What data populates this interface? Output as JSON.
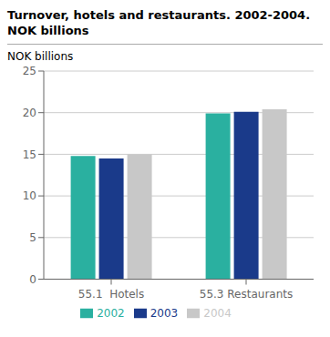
{
  "chart_data": {
    "type": "bar",
    "title": "Turnover, hotels and restaurants. 2002-2004.",
    "subtitle": "NOK billions",
    "ylabel": "NOK billions",
    "categories": [
      "55.1  Hotels",
      "55.3 Restaurants"
    ],
    "series": [
      {
        "name": "2002",
        "color": "#2ab0a0",
        "values": [
          14.8,
          19.9
        ]
      },
      {
        "name": "2003",
        "color": "#1a3a8a",
        "values": [
          14.5,
          20.1
        ]
      },
      {
        "name": "2004",
        "color": "#c8c8c8",
        "values": [
          15.0,
          20.4
        ]
      }
    ],
    "ylim": [
      0,
      25
    ],
    "yticks": [
      0,
      5,
      10,
      15,
      20,
      25
    ],
    "grid": true,
    "legend": "bottom"
  }
}
